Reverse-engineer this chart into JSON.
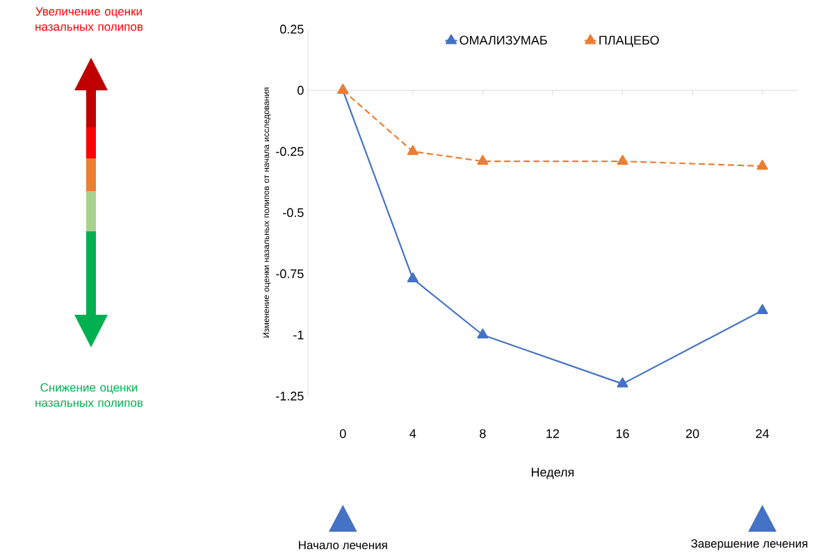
{
  "chart_data": {
    "type": "line",
    "xlabel": "Неделя",
    "ylabel": "Изменение оценки назальных полипов от начала исследования",
    "x": [
      0,
      4,
      8,
      16,
      24
    ],
    "series": [
      {
        "name": "ОМАЛИЗУМАБ",
        "color": "#4472c4",
        "values": [
          0,
          -0.77,
          -1.0,
          -1.2,
          -0.9
        ],
        "line_style": "solid"
      },
      {
        "name": "ПЛАЦЕБО",
        "color": "#ed7d31",
        "values": [
          0,
          -0.25,
          -0.29,
          -0.29,
          -0.31
        ],
        "line_style": "dashed"
      }
    ],
    "xlim": [
      -2,
      26
    ],
    "ylim": [
      -1.25,
      0.25
    ],
    "xticks": [
      0,
      4,
      8,
      12,
      16,
      20,
      24
    ],
    "yticks": [
      0.25,
      0,
      -0.25,
      -0.5,
      -0.75,
      -1,
      -1.25
    ],
    "ref_lines": [
      {
        "axis": "y",
        "value": 0,
        "color": "#d9d9d9"
      }
    ],
    "marker": "triangle",
    "legend": "top",
    "grid": false,
    "annotations": [
      "Увеличение оценки назальных полипов",
      "Снижение оценки назальных полипов",
      "Начало лечения",
      "Завершение лечения"
    ]
  }
}
